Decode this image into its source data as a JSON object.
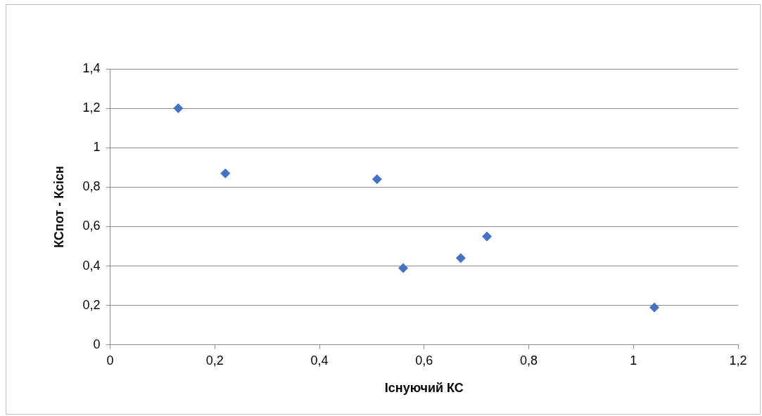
{
  "chart_data": {
    "type": "scatter",
    "xlabel": "Існуючий КС",
    "ylabel": "КСпот - Ксісн",
    "x": [
      0.13,
      0.22,
      0.51,
      0.56,
      0.67,
      0.72,
      1.04
    ],
    "values": [
      1.2,
      0.87,
      0.84,
      0.39,
      0.44,
      0.55,
      0.19
    ],
    "color": "#4472c4",
    "marker": "diamond",
    "xlim": [
      0,
      1.2
    ],
    "xticks": [
      0,
      {
        "value": 0.2,
        "label": "0,2"
      },
      {
        "value": 0.4,
        "label": "0,4"
      },
      {
        "value": 0.6,
        "label": "0,6"
      },
      {
        "value": 0.8,
        "label": "0,8"
      },
      1,
      {
        "value": 1.2,
        "label": "1,2"
      }
    ],
    "ylim": [
      0,
      1.4
    ],
    "yticks": [
      0,
      {
        "value": 0.2,
        "label": "0,2"
      },
      {
        "value": 0.4,
        "label": "0,4"
      },
      {
        "value": 0.6,
        "label": "0,6"
      },
      {
        "value": 0.8,
        "label": "0,8"
      },
      1,
      {
        "value": 1.2,
        "label": "1,2"
      },
      {
        "value": 1.4,
        "label": "1,4"
      }
    ],
    "grid": "y",
    "legend": false
  }
}
